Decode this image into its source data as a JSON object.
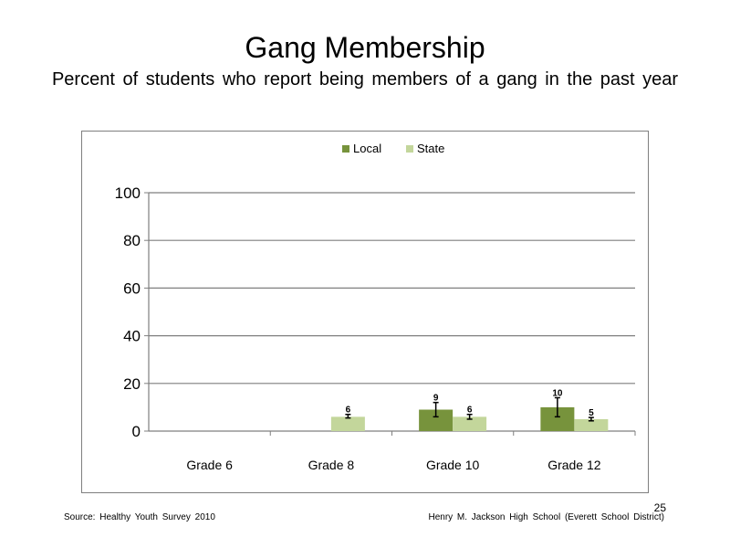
{
  "slide": {
    "title": "Gang Membership",
    "subtitle": "Percent of students who report being members of a gang in the past year",
    "source": "Source: Healthy Youth Survey 2010",
    "credit": "Henry M. Jackson High School (Everett School District)",
    "page_number": "25"
  },
  "chart_data": {
    "type": "bar",
    "title": "",
    "xlabel": "",
    "ylabel": "",
    "ylim": [
      0,
      100
    ],
    "yticks": [
      0,
      20,
      40,
      60,
      80,
      100
    ],
    "grid": true,
    "legend_position": "top-center",
    "categories": [
      "Grade 6",
      "Grade 8",
      "Grade 10",
      "Grade 12"
    ],
    "series": [
      {
        "name": "Local",
        "color": "#77933c",
        "values": [
          null,
          null,
          9,
          10
        ],
        "labels": [
          "",
          "",
          "9",
          "10"
        ],
        "error_low": [
          null,
          null,
          6,
          6
        ],
        "error_high": [
          null,
          null,
          12,
          14
        ]
      },
      {
        "name": "State",
        "color": "#c3d69b",
        "values": [
          null,
          6,
          6,
          5
        ],
        "labels": [
          "",
          "6",
          "6",
          "5"
        ],
        "error_low": [
          null,
          5.5,
          5,
          4.3
        ],
        "error_high": [
          null,
          7,
          7,
          5.7
        ]
      }
    ]
  }
}
